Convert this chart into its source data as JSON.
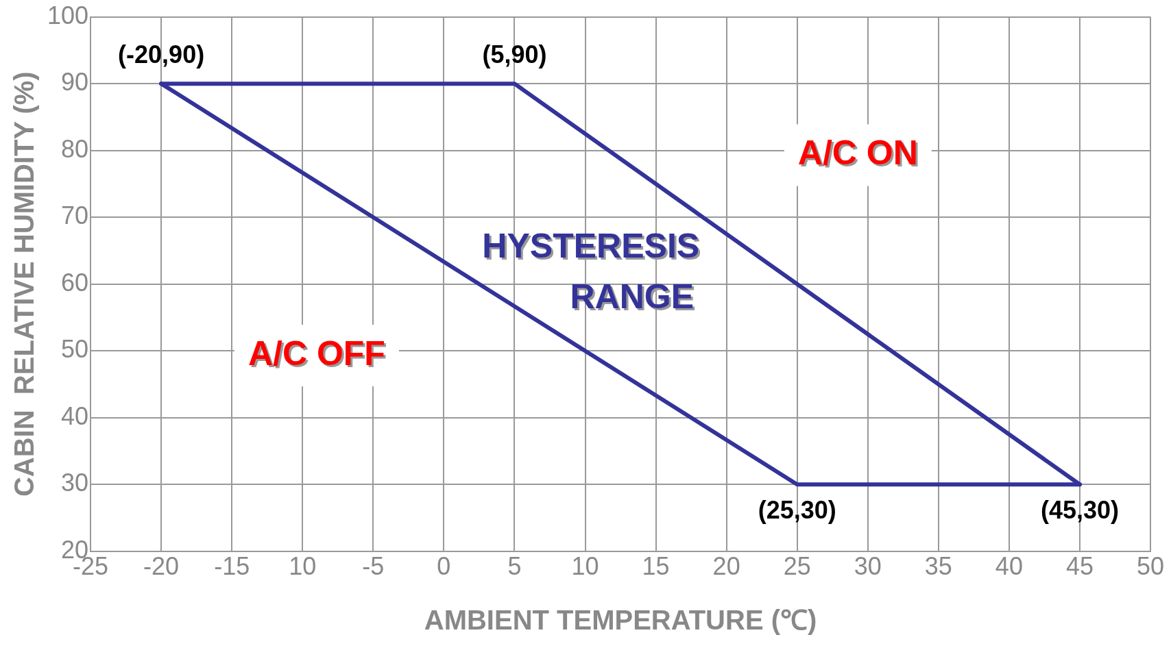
{
  "chart_data": {
    "type": "line",
    "xlabel": "AMBIENT TEMPERATURE (℃)",
    "ylabel": "CABIN  RELATIVE HUMIDITY (%)",
    "series": [
      {
        "color": "#333399",
        "x": [
          -20,
          5,
          45
        ],
        "values": [
          90,
          90,
          30
        ]
      },
      {
        "color": "#333399",
        "x": [
          -20,
          25,
          45
        ],
        "values": [
          90,
          30,
          30
        ]
      }
    ],
    "xlim": [
      -25,
      50
    ],
    "xticks": [
      -25,
      -20,
      -15,
      {
        "value": -10,
        "label": "10"
      },
      -5,
      0,
      5,
      10,
      15,
      20,
      25,
      30,
      35,
      40,
      45,
      50
    ],
    "ylim": [
      20,
      100
    ],
    "yticks": [
      20,
      30,
      40,
      50,
      60,
      70,
      80,
      90,
      100
    ],
    "grid": true,
    "legend": false,
    "marker": "none",
    "line_style": "solid",
    "annotations": [
      {
        "text": "(-20,90)",
        "x": -20,
        "y": 90
      },
      {
        "text": "(5,90)",
        "x": 5,
        "y": 90
      },
      {
        "text": "(25,30)",
        "x": 25,
        "y": 30
      },
      {
        "text": "(45,30)",
        "x": 45,
        "y": 30
      },
      "A/C ON",
      "HYSTERESIS RANGE",
      "A/C OFF"
    ]
  }
}
